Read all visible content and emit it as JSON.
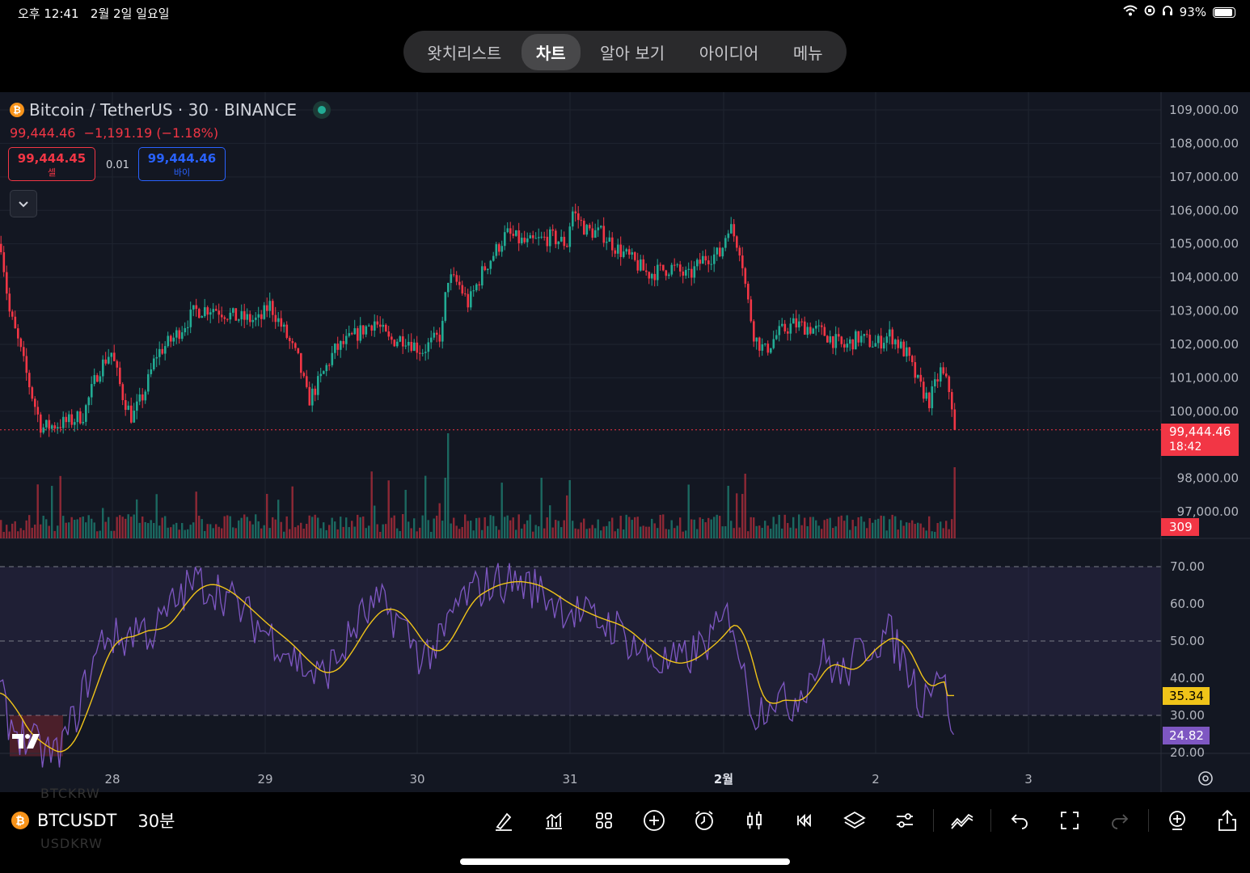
{
  "status_bar": {
    "time": "오후 12:41",
    "date": "2월 2일 일요일",
    "battery": "93%"
  },
  "nav_tabs": [
    {
      "label": "왓치리스트",
      "active": false
    },
    {
      "label": "차트",
      "active": true
    },
    {
      "label": "알아 보기",
      "active": false
    },
    {
      "label": "아이디어",
      "active": false
    },
    {
      "label": "메뉴",
      "active": false
    }
  ],
  "chart_header": {
    "title": "Bitcoin / TetherUS · 30 · BINANCE",
    "last_price": "99,444.46",
    "change": "−1,191.19 (−1.18%)",
    "sell_price": "99,444.45",
    "sell_label": "셀",
    "spread": "0.01",
    "buy_price": "99,444.46",
    "buy_label": "바이"
  },
  "price_axis": [
    "109,000.00",
    "108,000.00",
    "107,000.00",
    "106,000.00",
    "105,000.00",
    "104,000.00",
    "103,000.00",
    "102,000.00",
    "101,000.00",
    "100,000.00",
    "98,000.00",
    "97,000.00"
  ],
  "price_tag": {
    "price": "99,444.46",
    "countdown": "18:42"
  },
  "volume_tag": "309",
  "rsi_axis": [
    "70.00",
    "60.00",
    "50.00",
    "40.00",
    "30.00",
    "20.00"
  ],
  "rsi_tags": {
    "rsi_ma": "35.34",
    "rsi": "24.82"
  },
  "time_axis": [
    "28",
    "29",
    "30",
    "31",
    "2월",
    "2",
    "3"
  ],
  "symbol": {
    "ticker": "BTCUSDT",
    "interval": "30분"
  },
  "ghost_text": {
    "above": "BTCKRW",
    "below": "USDKRW"
  },
  "colors": {
    "up": "#22ab94",
    "down": "#f23645",
    "rsi": "#7e57c2",
    "rsi_ma": "#f0c419",
    "bg": "#131722",
    "buy": "#2962ff"
  },
  "chart_data": {
    "type": "candlestick",
    "title": "Bitcoin / TetherUS · 30 · BINANCE",
    "interval": "30",
    "x_labels": [
      "28",
      "29",
      "30",
      "31",
      "2월",
      "2",
      "3"
    ],
    "ylim": [
      96500,
      109500
    ],
    "key_points": [
      {
        "x": "27 late",
        "close": 105000
      },
      {
        "x": "28",
        "close": 99400
      },
      {
        "x": "28 mid",
        "close": 101600
      },
      {
        "x": "29 early",
        "close": 103000
      },
      {
        "x": "29 mid",
        "close": 100300
      },
      {
        "x": "30 early",
        "close": 102300
      },
      {
        "x": "30",
        "close": 101800
      },
      {
        "x": "30 mid",
        "close": 104200
      },
      {
        "x": "31 early",
        "close": 105300
      },
      {
        "x": "31",
        "close": 106000
      },
      {
        "x": "31 mid",
        "close": 104100
      },
      {
        "x": "2월",
        "close": 105500
      },
      {
        "x": "1 early",
        "close": 102000
      },
      {
        "x": "1 mid",
        "close": 102500
      },
      {
        "x": "2",
        "close": 101700
      },
      {
        "x": "2 mid",
        "close": 100500
      },
      {
        "x": "now",
        "close": 99444.46
      }
    ],
    "rsi": {
      "overbought": 70,
      "middle": 50,
      "oversold": 30,
      "last_rsi": 24.82,
      "last_ma": 35.34
    }
  }
}
